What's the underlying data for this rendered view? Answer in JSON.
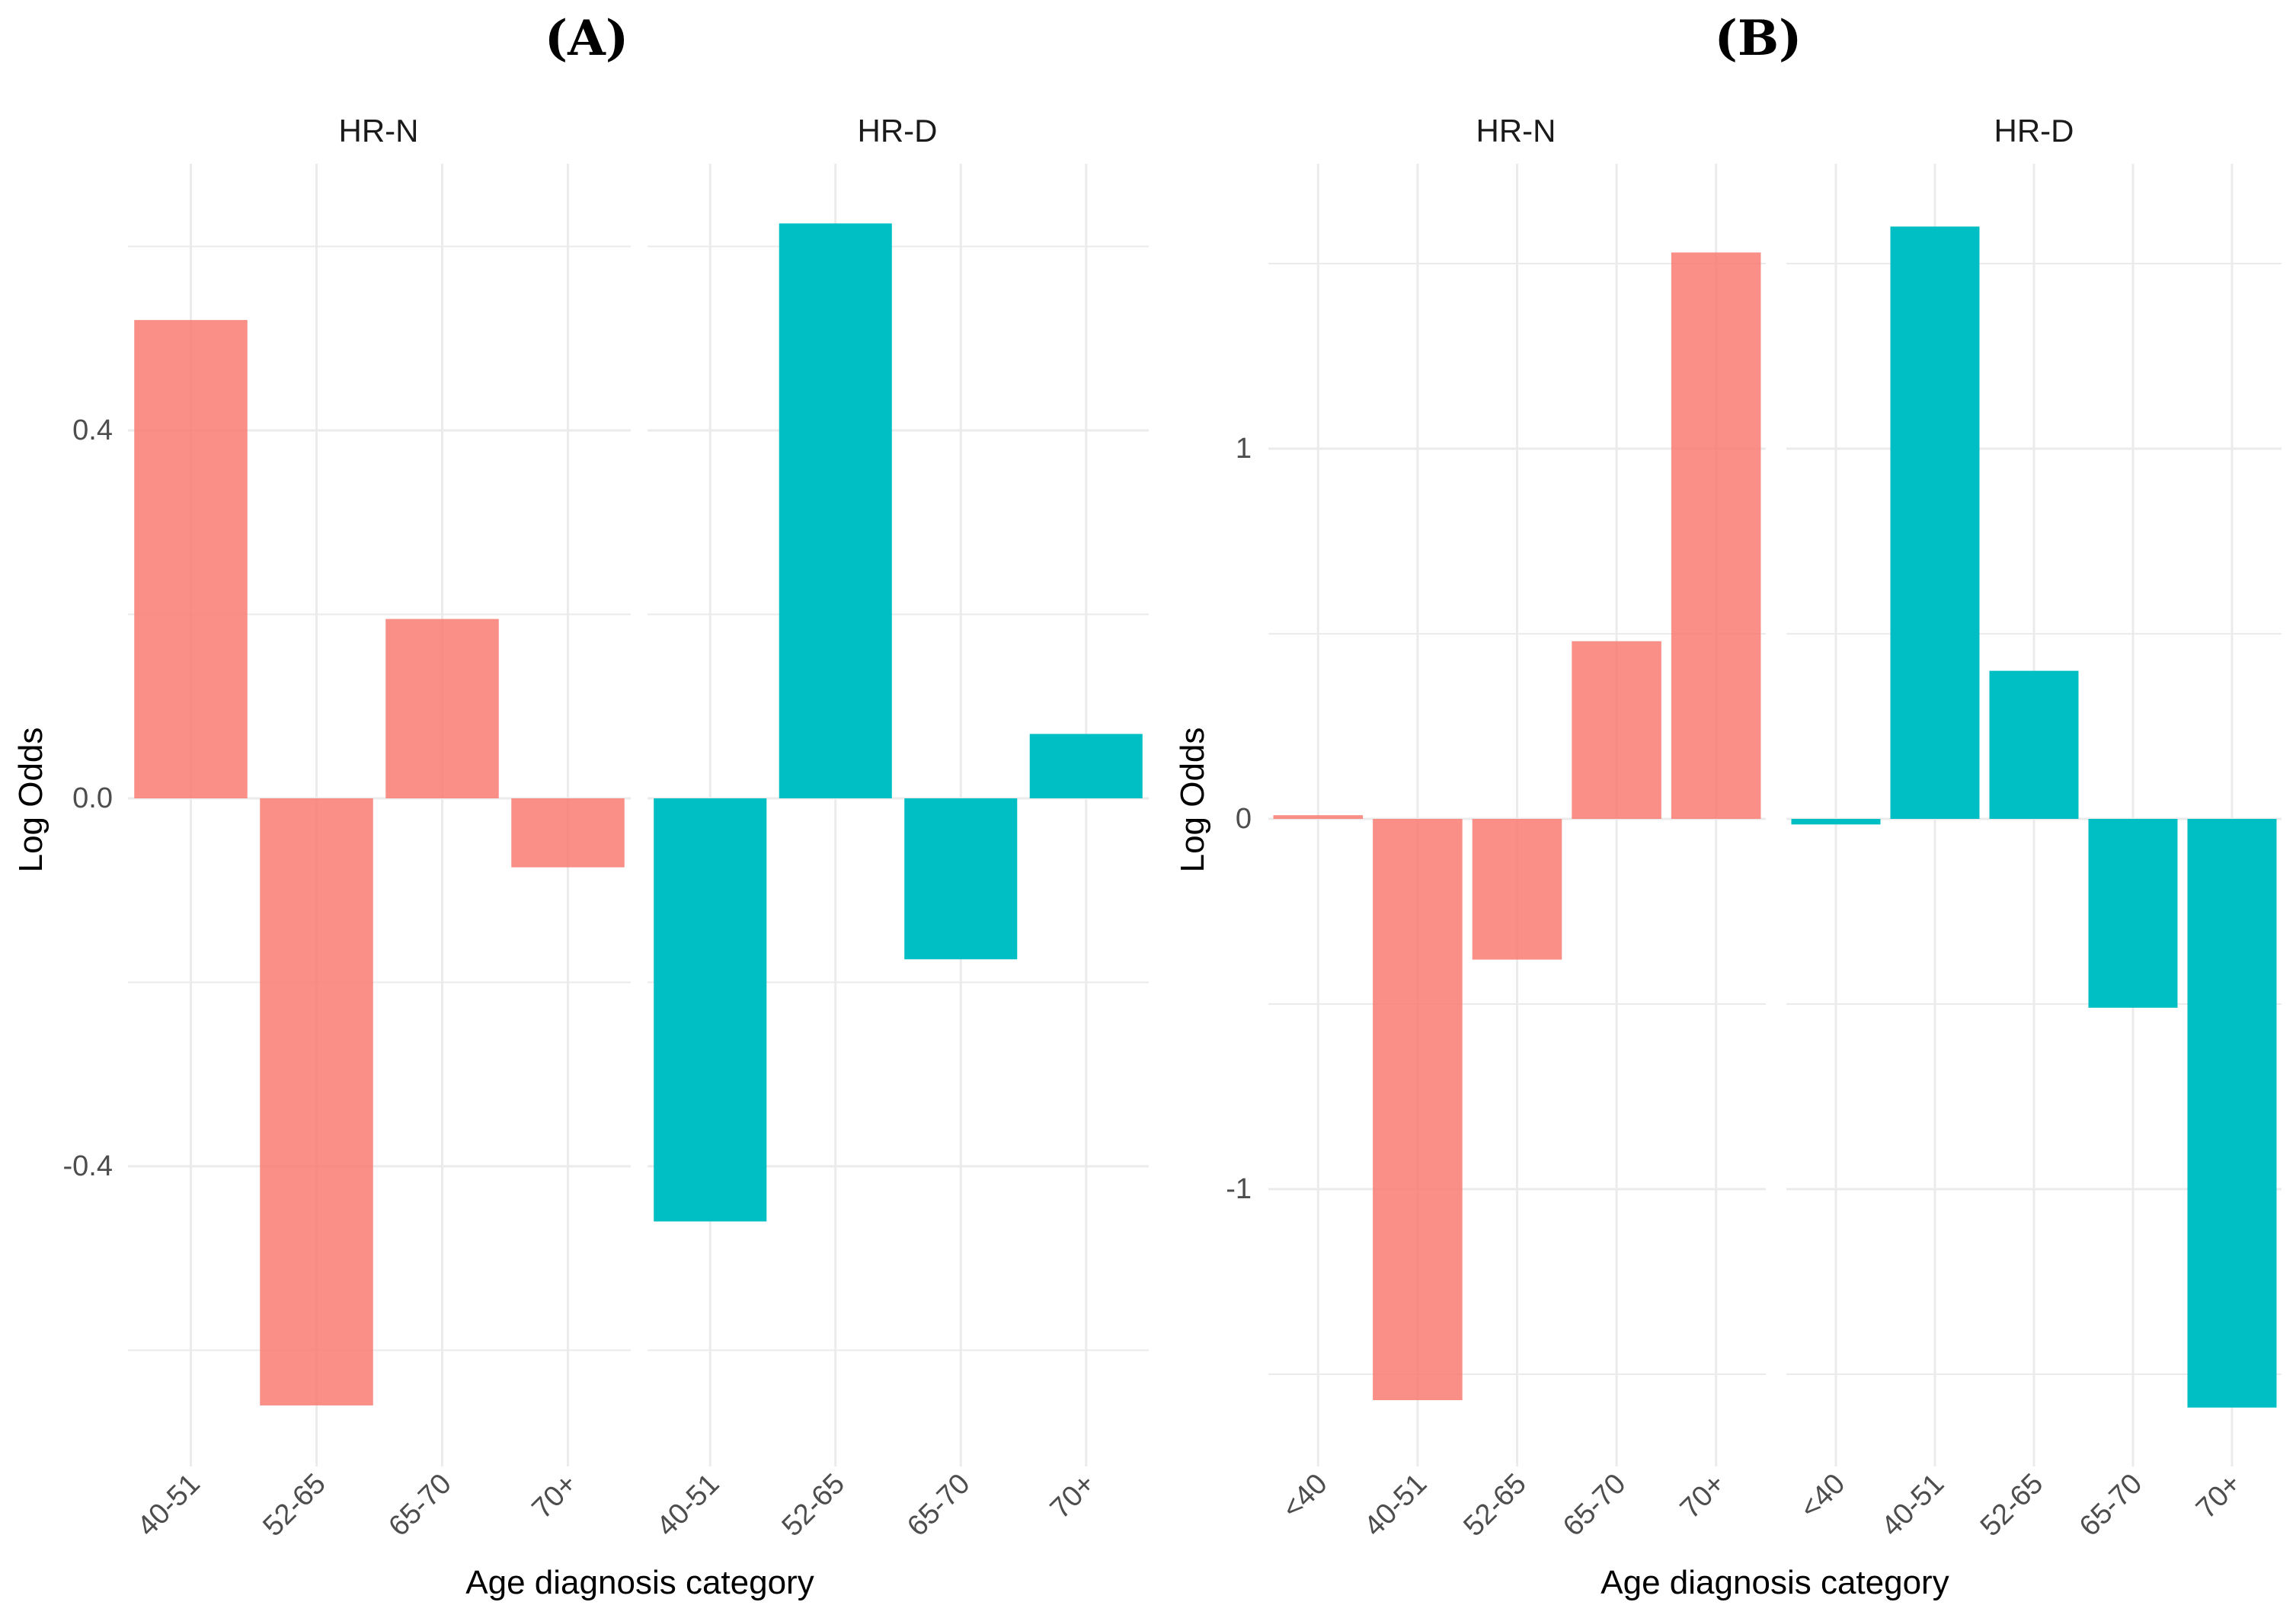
{
  "chart_data": [
    {
      "type": "bar",
      "panel_label": "(A)",
      "xlabel": "Age diagnosis category",
      "ylabel": "Log Odds",
      "ylim": [
        -0.7,
        0.7
      ],
      "yticks": [
        0.4,
        0.0,
        -0.4
      ],
      "ytick_labels": [
        "0.4",
        "0.0",
        "-0.4"
      ],
      "facets": [
        {
          "name": "HR-N",
          "color": "#F8766D",
          "categories": [
            "40-51",
            "52-65",
            "65-70",
            "70+"
          ],
          "values": [
            0.52,
            -0.66,
            0.195,
            -0.075
          ]
        },
        {
          "name": "HR-D",
          "color": "#00BFC4",
          "categories": [
            "40-51",
            "52-65",
            "65-70",
            "70+"
          ],
          "values": [
            -0.46,
            0.625,
            -0.175,
            0.07
          ]
        }
      ]
    },
    {
      "type": "bar",
      "panel_label": "(B)",
      "xlabel": "Age diagnosis category",
      "ylabel": "Log Odds",
      "ylim": [
        -1.7,
        1.7
      ],
      "yticks": [
        1,
        0,
        -1
      ],
      "ytick_labels": [
        "1",
        "0",
        "-1"
      ],
      "facets": [
        {
          "name": "HR-N",
          "color": "#F8766D",
          "categories": [
            "<40",
            "40-51",
            "52-65",
            "65-70",
            "70+"
          ],
          "values": [
            0.01,
            -1.57,
            -0.38,
            0.48,
            1.53
          ]
        },
        {
          "name": "HR-D",
          "color": "#00BFC4",
          "categories": [
            "<40",
            "40-51",
            "52-65",
            "65-70",
            "70+"
          ],
          "values": [
            -0.015,
            1.6,
            0.4,
            -0.51,
            -1.59
          ]
        }
      ]
    }
  ]
}
